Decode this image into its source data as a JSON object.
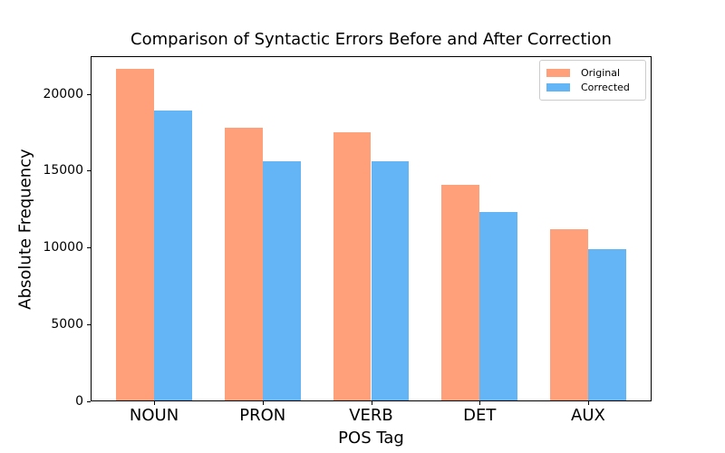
{
  "chart_data": {
    "type": "bar",
    "title": "Comparison of Syntactic Errors Before and After Correction",
    "xlabel": "POS Tag",
    "ylabel": "Absolute Frequency",
    "categories": [
      "NOUN",
      "PRON",
      "VERB",
      "DET",
      "AUX"
    ],
    "series": [
      {
        "name": "Original",
        "color": "#FFA07A",
        "values": [
          21600,
          17800,
          17500,
          14100,
          11200
        ]
      },
      {
        "name": "Corrected",
        "color": "#64B5F6",
        "values": [
          18900,
          15600,
          15600,
          12300,
          9900
        ]
      }
    ],
    "ylim": [
      0,
      22450
    ],
    "yticks": [
      0,
      5000,
      10000,
      15000,
      20000
    ],
    "grid": false,
    "legend_position": "upper right",
    "background_color": "#ffffff",
    "axis_color": "#000000"
  }
}
